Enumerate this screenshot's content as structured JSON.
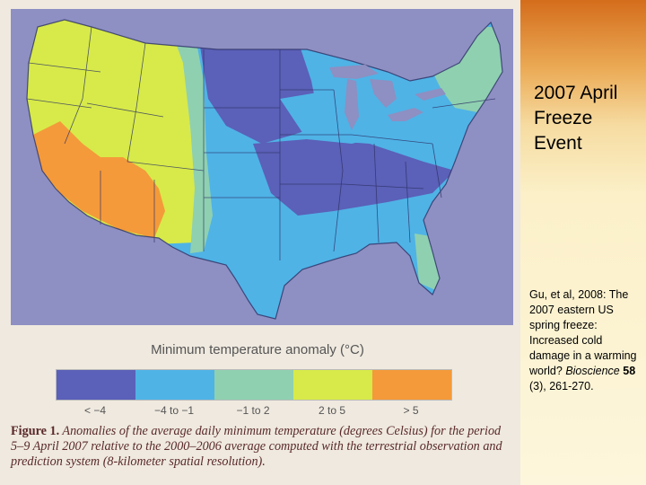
{
  "slide": {
    "title_lines": [
      "2007 April",
      "Freeze",
      "Event"
    ],
    "citation": {
      "authors": "Gu, et al, 2008:",
      "title": "The  2007 eastern US spring freeze: Increased cold damage in a warming world?",
      "journal": "Bioscience",
      "volume": "58",
      "issue_pages": "(3), 261-270."
    }
  },
  "figure": {
    "legend_title": "Minimum temperature anomaly (°C)",
    "legend": [
      {
        "label": "< −4",
        "color": "#5b60b8"
      },
      {
        "label": "−4 to −1",
        "color": "#4fb3e6"
      },
      {
        "label": "−1 to 2",
        "color": "#8fd0b0"
      },
      {
        "label": "2 to 5",
        "color": "#d7ea49"
      },
      {
        "label": "> 5",
        "color": "#f49a3a"
      }
    ],
    "caption_label": "Figure 1.",
    "caption_text": "Anomalies of the average daily minimum temperature (degrees Celsius) for the period 5–9 April 2007 relative to the 2000–2006 average computed with the terrestrial observation and prediction system (8-kilometer spatial resolution)."
  },
  "colors": {
    "background": "#8e8fc2",
    "boundary": "#2d3166"
  }
}
